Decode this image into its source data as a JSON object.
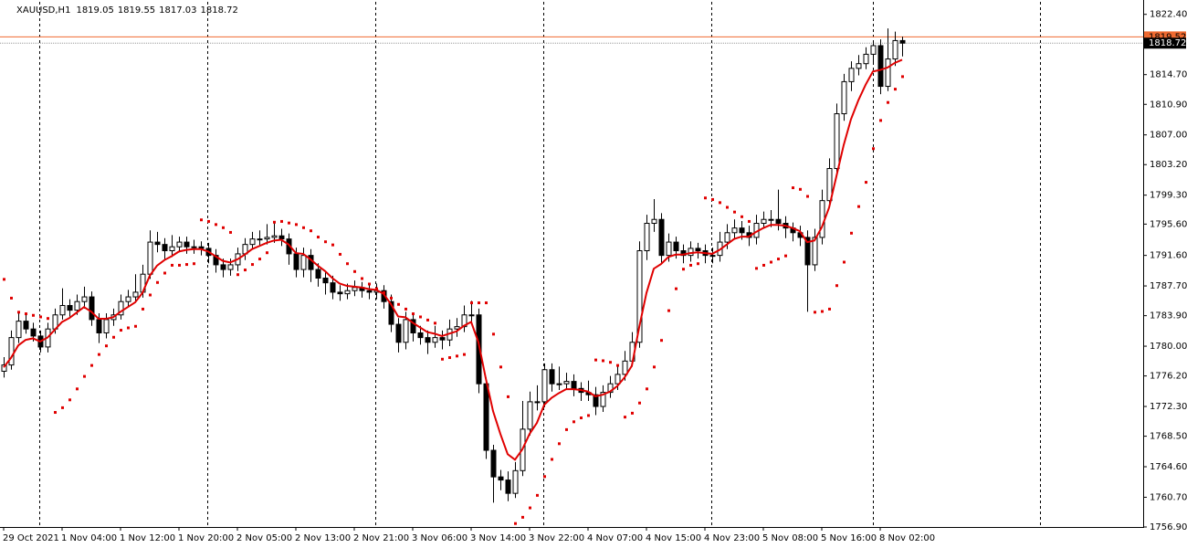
{
  "chart_data": {
    "type": "candlestick",
    "symbol": "XAUUSD,H1",
    "up_color": "#ffffff",
    "down_color": "#000000",
    "outline_color": "#000000",
    "ylim": [
      1756.9,
      1824.0
    ],
    "yticks": [
      {
        "value": 1822.4,
        "label": "1822.40"
      },
      {
        "value": 1814.7,
        "label": "1814.70"
      },
      {
        "value": 1810.9,
        "label": "1810.90"
      },
      {
        "value": 1807.0,
        "label": "1807.00"
      },
      {
        "value": 1803.2,
        "label": "1803.20"
      },
      {
        "value": 1799.3,
        "label": "1799.30"
      },
      {
        "value": 1795.6,
        "label": "1795.60"
      },
      {
        "value": 1791.6,
        "label": "1791.60"
      },
      {
        "value": 1787.7,
        "label": "1787.70"
      },
      {
        "value": 1783.9,
        "label": "1783.90"
      },
      {
        "value": 1780.0,
        "label": "1780.00"
      },
      {
        "value": 1776.2,
        "label": "1776.20"
      },
      {
        "value": 1772.3,
        "label": "1772.30"
      },
      {
        "value": 1768.5,
        "label": "1768.50"
      },
      {
        "value": 1764.6,
        "label": "1764.60"
      },
      {
        "value": 1760.7,
        "label": "1760.70"
      },
      {
        "value": 1756.9,
        "label": "1756.90"
      }
    ],
    "ask": 1819.52,
    "ask_color": "#f06a30",
    "categories": [
      "29 Oct 2021",
      null,
      null,
      null,
      null,
      null,
      null,
      null,
      "1 Nov 04:00",
      null,
      null,
      null,
      null,
      null,
      null,
      null,
      "1 Nov 12:00",
      null,
      null,
      null,
      null,
      null,
      null,
      null,
      "1 Nov 20:00",
      null,
      null,
      null,
      null,
      null,
      null,
      null,
      "2 Nov 05:00",
      null,
      null,
      null,
      null,
      null,
      null,
      null,
      "2 Nov 13:00",
      null,
      null,
      null,
      null,
      null,
      null,
      null,
      "2 Nov 21:00",
      null,
      null,
      null,
      null,
      null,
      null,
      null,
      "3 Nov 06:00",
      null,
      null,
      null,
      null,
      null,
      null,
      null,
      "3 Nov 14:00",
      null,
      null,
      null,
      null,
      null,
      null,
      null,
      "3 Nov 22:00",
      null,
      null,
      null,
      null,
      null,
      null,
      null,
      "4 Nov 07:00",
      null,
      null,
      null,
      null,
      null,
      null,
      null,
      "4 Nov 15:00",
      null,
      null,
      null,
      null,
      null,
      null,
      null,
      "4 Nov 23:00",
      null,
      null,
      null,
      null,
      null,
      null,
      null,
      "5 Nov 08:00",
      null,
      null,
      null,
      null,
      null,
      null,
      null,
      "5 Nov 16:00",
      null,
      null,
      null,
      null,
      null,
      null,
      null,
      "8 Nov 02:00",
      null,
      null,
      null
    ],
    "candles": [
      [
        1776.8,
        1778.6,
        1776.0,
        1777.6
      ],
      [
        1777.6,
        1782.0,
        1777.0,
        1781.1
      ],
      [
        1781.1,
        1784.2,
        1780.4,
        1783.2
      ],
      [
        1783.2,
        1784.0,
        1781.6,
        1782.2
      ],
      [
        1782.2,
        1783.0,
        1780.6,
        1781.3
      ],
      [
        1781.3,
        1782.0,
        1779.2,
        1779.9
      ],
      [
        1779.9,
        1783.0,
        1779.2,
        1782.2
      ],
      [
        1782.2,
        1784.8,
        1781.6,
        1784.0
      ],
      [
        1784.0,
        1787.4,
        1783.4,
        1785.2
      ],
      [
        1785.2,
        1786.0,
        1783.8,
        1784.6
      ],
      [
        1784.6,
        1786.6,
        1784.0,
        1785.7
      ],
      [
        1785.7,
        1787.6,
        1784.8,
        1786.3
      ],
      [
        1786.3,
        1787.0,
        1782.6,
        1783.4
      ],
      [
        1783.4,
        1784.2,
        1780.4,
        1781.7
      ],
      [
        1781.7,
        1784.2,
        1781.0,
        1783.4
      ],
      [
        1783.4,
        1784.8,
        1782.6,
        1784.0
      ],
      [
        1784.0,
        1786.6,
        1783.4,
        1785.7
      ],
      [
        1785.7,
        1787.2,
        1785.0,
        1786.3
      ],
      [
        1786.3,
        1789.2,
        1785.6,
        1786.9
      ],
      [
        1786.9,
        1790.4,
        1786.2,
        1789.2
      ],
      [
        1789.2,
        1794.8,
        1788.6,
        1793.3
      ],
      [
        1793.3,
        1794.6,
        1792.0,
        1793.0
      ],
      [
        1793.0,
        1793.8,
        1791.0,
        1792.2
      ],
      [
        1792.2,
        1794.2,
        1791.4,
        1792.7
      ],
      [
        1792.7,
        1794.0,
        1792.0,
        1793.3
      ],
      [
        1793.3,
        1794.0,
        1791.8,
        1792.7
      ],
      [
        1792.7,
        1793.6,
        1791.8,
        1792.7
      ],
      [
        1792.7,
        1793.4,
        1791.6,
        1792.5
      ],
      [
        1792.5,
        1793.2,
        1790.6,
        1791.6
      ],
      [
        1791.6,
        1792.4,
        1789.4,
        1790.4
      ],
      [
        1790.4,
        1791.2,
        1788.8,
        1789.8
      ],
      [
        1789.8,
        1791.2,
        1789.0,
        1790.4
      ],
      [
        1790.4,
        1792.6,
        1789.6,
        1791.8
      ],
      [
        1791.8,
        1793.8,
        1791.0,
        1793.0
      ],
      [
        1793.0,
        1794.6,
        1792.4,
        1793.7
      ],
      [
        1793.7,
        1794.8,
        1792.8,
        1793.7
      ],
      [
        1793.7,
        1795.6,
        1793.0,
        1793.9
      ],
      [
        1793.9,
        1795.8,
        1793.2,
        1794.1
      ],
      [
        1794.1,
        1795.0,
        1792.8,
        1793.7
      ],
      [
        1793.7,
        1794.4,
        1790.4,
        1791.8
      ],
      [
        1791.8,
        1792.6,
        1788.8,
        1789.8
      ],
      [
        1789.8,
        1792.6,
        1788.8,
        1791.6
      ],
      [
        1791.6,
        1792.4,
        1788.2,
        1789.8
      ],
      [
        1789.8,
        1790.6,
        1787.6,
        1788.7
      ],
      [
        1788.7,
        1789.6,
        1786.6,
        1788.1
      ],
      [
        1788.1,
        1789.0,
        1786.0,
        1786.9
      ],
      [
        1786.9,
        1787.8,
        1785.8,
        1786.7
      ],
      [
        1786.7,
        1788.0,
        1786.0,
        1787.1
      ],
      [
        1787.1,
        1788.4,
        1786.4,
        1787.5
      ],
      [
        1787.5,
        1788.2,
        1786.2,
        1787.1
      ],
      [
        1787.1,
        1787.8,
        1786.0,
        1786.9
      ],
      [
        1786.9,
        1788.0,
        1786.0,
        1787.1
      ],
      [
        1787.1,
        1787.8,
        1784.8,
        1785.7
      ],
      [
        1785.7,
        1786.6,
        1781.8,
        1782.8
      ],
      [
        1782.8,
        1783.6,
        1779.2,
        1780.5
      ],
      [
        1780.5,
        1784.4,
        1779.6,
        1783.4
      ],
      [
        1783.4,
        1784.2,
        1780.6,
        1781.7
      ],
      [
        1781.7,
        1782.6,
        1780.2,
        1781.1
      ],
      [
        1781.1,
        1782.0,
        1779.0,
        1780.5
      ],
      [
        1780.5,
        1782.6,
        1779.8,
        1781.1
      ],
      [
        1781.1,
        1782.0,
        1779.6,
        1780.8
      ],
      [
        1780.8,
        1783.4,
        1780.0,
        1782.2
      ],
      [
        1782.2,
        1783.6,
        1781.2,
        1782.5
      ],
      [
        1782.5,
        1785.2,
        1781.8,
        1784.0
      ],
      [
        1784.0,
        1785.8,
        1782.8,
        1784.0
      ],
      [
        1784.0,
        1784.8,
        1774.0,
        1775.2
      ],
      [
        1775.2,
        1776.0,
        1765.6,
        1766.7
      ],
      [
        1766.7,
        1767.4,
        1760.0,
        1763.3
      ],
      [
        1763.3,
        1764.2,
        1761.6,
        1762.9
      ],
      [
        1762.9,
        1764.0,
        1760.2,
        1761.2
      ],
      [
        1761.2,
        1765.2,
        1760.6,
        1764.1
      ],
      [
        1764.1,
        1773.0,
        1763.4,
        1769.4
      ],
      [
        1769.4,
        1774.2,
        1768.6,
        1772.9
      ],
      [
        1772.9,
        1775.0,
        1771.8,
        1772.9
      ],
      [
        1772.9,
        1777.8,
        1772.2,
        1777.0
      ],
      [
        1777.0,
        1777.8,
        1774.2,
        1775.2
      ],
      [
        1775.2,
        1777.4,
        1774.4,
        1775.2
      ],
      [
        1775.2,
        1776.6,
        1774.6,
        1775.5
      ],
      [
        1775.5,
        1776.4,
        1773.6,
        1774.6
      ],
      [
        1774.6,
        1775.4,
        1773.0,
        1774.1
      ],
      [
        1774.1,
        1775.6,
        1773.0,
        1773.8
      ],
      [
        1773.8,
        1774.8,
        1771.2,
        1772.3
      ],
      [
        1772.3,
        1775.0,
        1771.6,
        1774.1
      ],
      [
        1774.1,
        1776.2,
        1773.4,
        1775.2
      ],
      [
        1775.2,
        1777.4,
        1774.4,
        1776.4
      ],
      [
        1776.4,
        1779.4,
        1775.6,
        1778.1
      ],
      [
        1778.1,
        1781.8,
        1777.4,
        1780.5
      ],
      [
        1780.5,
        1793.4,
        1779.8,
        1792.2
      ],
      [
        1792.2,
        1796.8,
        1791.0,
        1795.7
      ],
      [
        1795.7,
        1798.8,
        1794.6,
        1796.2
      ],
      [
        1796.2,
        1797.0,
        1790.6,
        1791.6
      ],
      [
        1791.6,
        1794.4,
        1790.8,
        1793.3
      ],
      [
        1793.3,
        1794.0,
        1791.2,
        1792.2
      ],
      [
        1792.2,
        1793.0,
        1790.6,
        1791.6
      ],
      [
        1791.6,
        1793.4,
        1790.8,
        1792.5
      ],
      [
        1792.5,
        1793.2,
        1791.2,
        1792.2
      ],
      [
        1792.2,
        1793.0,
        1790.6,
        1791.6
      ],
      [
        1791.6,
        1792.6,
        1790.6,
        1791.6
      ],
      [
        1791.6,
        1794.6,
        1790.8,
        1793.3
      ],
      [
        1793.3,
        1795.6,
        1792.4,
        1794.5
      ],
      [
        1794.5,
        1796.2,
        1793.6,
        1795.1
      ],
      [
        1795.1,
        1796.0,
        1793.6,
        1794.5
      ],
      [
        1794.5,
        1795.4,
        1792.8,
        1793.9
      ],
      [
        1793.9,
        1796.8,
        1793.0,
        1795.7
      ],
      [
        1795.7,
        1797.2,
        1795.0,
        1796.2
      ],
      [
        1796.2,
        1797.4,
        1795.2,
        1796.2
      ],
      [
        1796.2,
        1800.0,
        1794.8,
        1795.7
      ],
      [
        1795.7,
        1796.6,
        1793.8,
        1795.1
      ],
      [
        1795.1,
        1795.8,
        1793.4,
        1794.5
      ],
      [
        1794.5,
        1795.4,
        1792.8,
        1793.9
      ],
      [
        1793.9,
        1794.8,
        1784.4,
        1790.4
      ],
      [
        1790.4,
        1795.0,
        1789.6,
        1793.9
      ],
      [
        1793.9,
        1800.0,
        1793.0,
        1798.6
      ],
      [
        1798.6,
        1804.0,
        1797.8,
        1802.7
      ],
      [
        1802.7,
        1811.0,
        1801.8,
        1809.7
      ],
      [
        1809.7,
        1814.8,
        1808.8,
        1813.8
      ],
      [
        1813.8,
        1816.4,
        1812.6,
        1815.5
      ],
      [
        1815.5,
        1817.2,
        1814.6,
        1816.1
      ],
      [
        1816.1,
        1818.2,
        1815.4,
        1817.3
      ],
      [
        1817.3,
        1819.0,
        1816.2,
        1818.4
      ],
      [
        1818.4,
        1819.2,
        1812.2,
        1813.2
      ],
      [
        1813.2,
        1820.6,
        1812.6,
        1816.7
      ],
      [
        1816.7,
        1820.2,
        1815.8,
        1819.05
      ],
      [
        1819.05,
        1819.55,
        1817.03,
        1818.72
      ]
    ],
    "ma": {
      "color": "#e00000",
      "values": [
        1777.3,
        1778.5,
        1780.1,
        1780.8,
        1781.0,
        1780.6,
        1781.1,
        1782.1,
        1783.1,
        1783.6,
        1784.3,
        1785.0,
        1784.4,
        1783.5,
        1783.5,
        1783.7,
        1784.4,
        1785.0,
        1785.6,
        1786.8,
        1789.0,
        1790.3,
        1791.0,
        1791.5,
        1792.1,
        1792.3,
        1792.4,
        1792.4,
        1792.1,
        1791.5,
        1790.9,
        1790.7,
        1791.1,
        1791.7,
        1792.4,
        1792.8,
        1793.2,
        1793.5,
        1793.6,
        1793.0,
        1791.9,
        1791.8,
        1791.1,
        1790.3,
        1789.6,
        1788.7,
        1788.0,
        1787.7,
        1787.6,
        1787.5,
        1787.3,
        1787.2,
        1786.7,
        1785.4,
        1783.8,
        1783.7,
        1783.0,
        1782.4,
        1781.8,
        1781.6,
        1781.3,
        1781.6,
        1781.9,
        1782.6,
        1783.1,
        1780.5,
        1775.9,
        1771.7,
        1768.8,
        1766.2,
        1765.5,
        1766.8,
        1768.8,
        1770.2,
        1772.5,
        1773.4,
        1774.0,
        1774.5,
        1774.5,
        1774.4,
        1774.2,
        1773.6,
        1773.8,
        1774.2,
        1774.9,
        1776.0,
        1777.5,
        1782.4,
        1786.8,
        1789.9,
        1790.5,
        1791.4,
        1791.7,
        1791.7,
        1791.9,
        1792.0,
        1791.9,
        1791.8,
        1792.3,
        1793.0,
        1793.7,
        1794.0,
        1794.0,
        1794.6,
        1795.1,
        1795.5,
        1795.5,
        1795.4,
        1795.1,
        1794.7,
        1793.3,
        1793.5,
        1795.2,
        1797.7,
        1801.7,
        1805.7,
        1809.0,
        1811.4,
        1813.4,
        1815.1,
        1815.3,
        1815.6,
        1816.2,
        1816.6
      ]
    },
    "sar": {
      "color": "#e00000",
      "values": [
        1788.6,
        1786.2,
        1784.4,
        1784.2,
        1784.0,
        1783.8,
        1783.6,
        1771.6,
        1772.2,
        1773.2,
        1774.6,
        1776.2,
        1777.6,
        1779.0,
        1780.1,
        1781.2,
        1782.1,
        1782.4,
        1782.6,
        1784.8,
        1786.6,
        1788.2,
        1789.4,
        1790.4,
        1790.4,
        1790.5,
        1790.6,
        1796.2,
        1796.0,
        1795.6,
        1795.2,
        1794.6,
        1789.2,
        1789.8,
        1790.5,
        1791.2,
        1792.0,
        1795.9,
        1796.0,
        1795.8,
        1795.6,
        1795.2,
        1794.8,
        1794.0,
        1793.4,
        1793.0,
        1791.8,
        1790.6,
        1789.6,
        1788.7,
        1788.0,
        1787.4,
        1786.9,
        1786.2,
        1785.4,
        1784.8,
        1784.2,
        1783.8,
        1783.4,
        1783.0,
        1778.4,
        1778.6,
        1778.8,
        1779.0,
        1785.6,
        1785.6,
        1785.6,
        1781.6,
        1777.4,
        1773.6,
        1757.4,
        1758.2,
        1759.4,
        1761.0,
        1763.4,
        1765.6,
        1767.6,
        1769.4,
        1770.4,
        1770.9,
        1771.2,
        1778.3,
        1778.2,
        1778.0,
        1777.6,
        1771.0,
        1771.5,
        1772.8,
        1774.6,
        1777.4,
        1780.8,
        1784.6,
        1787.4,
        1789.9,
        1790.4,
        1790.6,
        1799.0,
        1798.8,
        1798.4,
        1797.8,
        1797.2,
        1796.6,
        1796.0,
        1790.0,
        1790.4,
        1790.8,
        1791.2,
        1791.6,
        1800.3,
        1800.1,
        1799.2,
        1784.4,
        1784.5,
        1784.8,
        1787.8,
        1790.8,
        1794.5,
        1797.9,
        1801.0,
        1805.3,
        1808.9,
        1811.2,
        1812.9,
        1814.5
      ]
    }
  }
}
